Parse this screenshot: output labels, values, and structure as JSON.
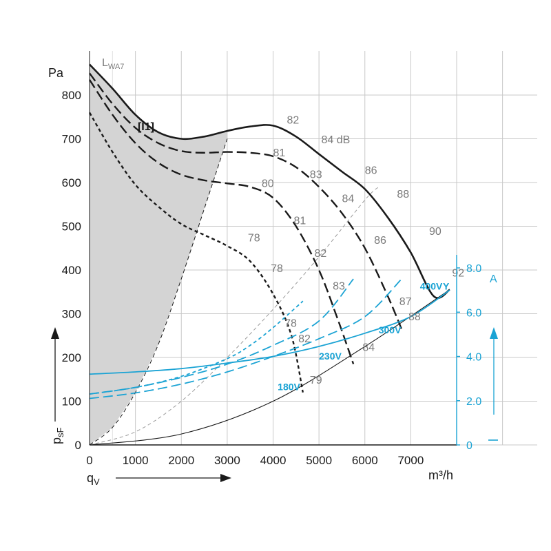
{
  "chart_data": {
    "type": "line",
    "title": "",
    "xlabel": "qV",
    "x_unit": "m³/h",
    "ylabel": "psF",
    "y_unit": "Pa",
    "y2_unit": "A",
    "xlim": [
      0,
      8000
    ],
    "ylim": [
      0,
      900
    ],
    "y2lim": [
      0,
      9
    ],
    "x_ticks": [
      "0",
      "1000",
      "2000",
      "3000",
      "4000",
      "5000",
      "6000",
      "7000"
    ],
    "y_ticks": [
      "0",
      "100",
      "200",
      "300",
      "400",
      "500",
      "600",
      "700",
      "800"
    ],
    "y2_ticks": [
      "0",
      "2.0",
      "4.0",
      "6.0",
      "8.0"
    ],
    "grid": true,
    "sound_label": "LWA7",
    "region_label": "[I1]",
    "pressure_series": [
      {
        "name": "400V",
        "style": "solid",
        "x": [
          0,
          500,
          1000,
          1500,
          2000,
          2500,
          3000,
          3500,
          4000,
          4500,
          5000,
          5500,
          6000,
          6500,
          7000,
          7500,
          7850
        ],
        "y": [
          870,
          815,
          755,
          715,
          700,
          705,
          718,
          728,
          730,
          705,
          665,
          625,
          585,
          520,
          440,
          340,
          355
        ]
      },
      {
        "name": "300V",
        "style": "dashed",
        "x": [
          0,
          500,
          1000,
          1500,
          2000,
          2500,
          3000,
          3500,
          4000,
          4500,
          5000,
          5500,
          6000,
          6500,
          6800
        ],
        "y": [
          850,
          780,
          725,
          690,
          672,
          668,
          670,
          668,
          660,
          635,
          590,
          530,
          450,
          340,
          265
        ]
      },
      {
        "name": "230V",
        "style": "dashed",
        "x": [
          0,
          500,
          1000,
          1500,
          2000,
          2500,
          3000,
          3500,
          4000,
          4500,
          5000,
          5400,
          5750
        ],
        "y": [
          835,
          755,
          690,
          645,
          618,
          605,
          598,
          590,
          565,
          500,
          400,
          290,
          185
        ]
      },
      {
        "name": "180V",
        "style": "dotted",
        "x": [
          0,
          500,
          1000,
          1500,
          2000,
          2500,
          3000,
          3500,
          4000,
          4400,
          4650
        ],
        "y": [
          760,
          670,
          595,
          545,
          505,
          480,
          455,
          420,
          345,
          250,
          120
        ]
      }
    ],
    "current_series": [
      {
        "name": "400V",
        "style": "solid",
        "x": [
          0,
          1000,
          2000,
          3000,
          4000,
          5000,
          6000,
          7000,
          7850
        ],
        "y": [
          3.2,
          3.3,
          3.45,
          3.7,
          4.0,
          4.45,
          5.05,
          5.8,
          7.0
        ]
      },
      {
        "name": "300V",
        "style": "dashed",
        "x": [
          0,
          1000,
          2000,
          3000,
          4000,
          5000,
          6000,
          6800
        ],
        "y": [
          2.1,
          2.35,
          2.75,
          3.3,
          4.0,
          4.8,
          5.8,
          7.5
        ]
      },
      {
        "name": "230V",
        "style": "dashed",
        "x": [
          0,
          1000,
          2000,
          3000,
          4000,
          5000,
          5750
        ],
        "y": [
          2.3,
          2.6,
          3.05,
          3.65,
          4.5,
          5.6,
          7.5
        ]
      },
      {
        "name": "180V",
        "style": "dotted",
        "x": [
          0,
          1000,
          2000,
          3000,
          3500,
          4000,
          4650
        ],
        "y": [
          2.3,
          2.6,
          3.1,
          3.9,
          4.5,
          5.3,
          6.5
        ]
      }
    ],
    "system_curves": [
      {
        "style": "thin-solid",
        "x": [
          0,
          2000,
          4000,
          6000,
          7850
        ],
        "y": [
          0,
          25,
          100,
          225,
          355
        ]
      },
      {
        "style": "thin-dashed",
        "x": [
          0,
          1000,
          2000,
          3000,
          4000,
          5000,
          6000,
          6300
        ],
        "y": [
          0,
          30,
          100,
          200,
          310,
          430,
          560,
          590
        ]
      },
      {
        "style": "boundary-dashed",
        "x": [
          0,
          500,
          1000,
          1500,
          2000,
          2500,
          3000
        ],
        "y": [
          0,
          40,
          120,
          230,
          380,
          540,
          700
        ]
      }
    ],
    "db_labels": [
      {
        "text": "82",
        "x": 4300,
        "y": 735
      },
      {
        "text": "84 dB",
        "x": 5050,
        "y": 690
      },
      {
        "text": "86",
        "x": 6000,
        "y": 620
      },
      {
        "text": "88",
        "x": 6700,
        "y": 565
      },
      {
        "text": "90",
        "x": 7400,
        "y": 480
      },
      {
        "text": "92",
        "x": 7900,
        "y": 385
      },
      {
        "text": "81",
        "x": 4000,
        "y": 660
      },
      {
        "text": "83",
        "x": 4800,
        "y": 610
      },
      {
        "text": "84",
        "x": 5500,
        "y": 555
      },
      {
        "text": "86",
        "x": 6200,
        "y": 460
      },
      {
        "text": "87",
        "x": 6750,
        "y": 320
      },
      {
        "text": "88",
        "x": 6950,
        "y": 285
      },
      {
        "text": "80",
        "x": 3750,
        "y": 590
      },
      {
        "text": "81",
        "x": 4450,
        "y": 505
      },
      {
        "text": "82",
        "x": 4900,
        "y": 430
      },
      {
        "text": "83",
        "x": 5300,
        "y": 355
      },
      {
        "text": "84",
        "x": 5950,
        "y": 215
      },
      {
        "text": "78",
        "x": 3450,
        "y": 465
      },
      {
        "text": "78",
        "x": 3950,
        "y": 395
      },
      {
        "text": "78",
        "x": 4250,
        "y": 270
      },
      {
        "text": "82",
        "x": 4550,
        "y": 235
      },
      {
        "text": "79",
        "x": 4800,
        "y": 140
      }
    ],
    "voltage_labels": [
      {
        "text": "400V",
        "x": 7200,
        "y": 355
      },
      {
        "text": "Y",
        "x": 7700,
        "y": 355
      },
      {
        "text": "300V",
        "x": 6300,
        "y": 255
      },
      {
        "text": "230V",
        "x": 5000,
        "y": 195
      },
      {
        "text": "180V",
        "x": 4100,
        "y": 125
      }
    ]
  }
}
